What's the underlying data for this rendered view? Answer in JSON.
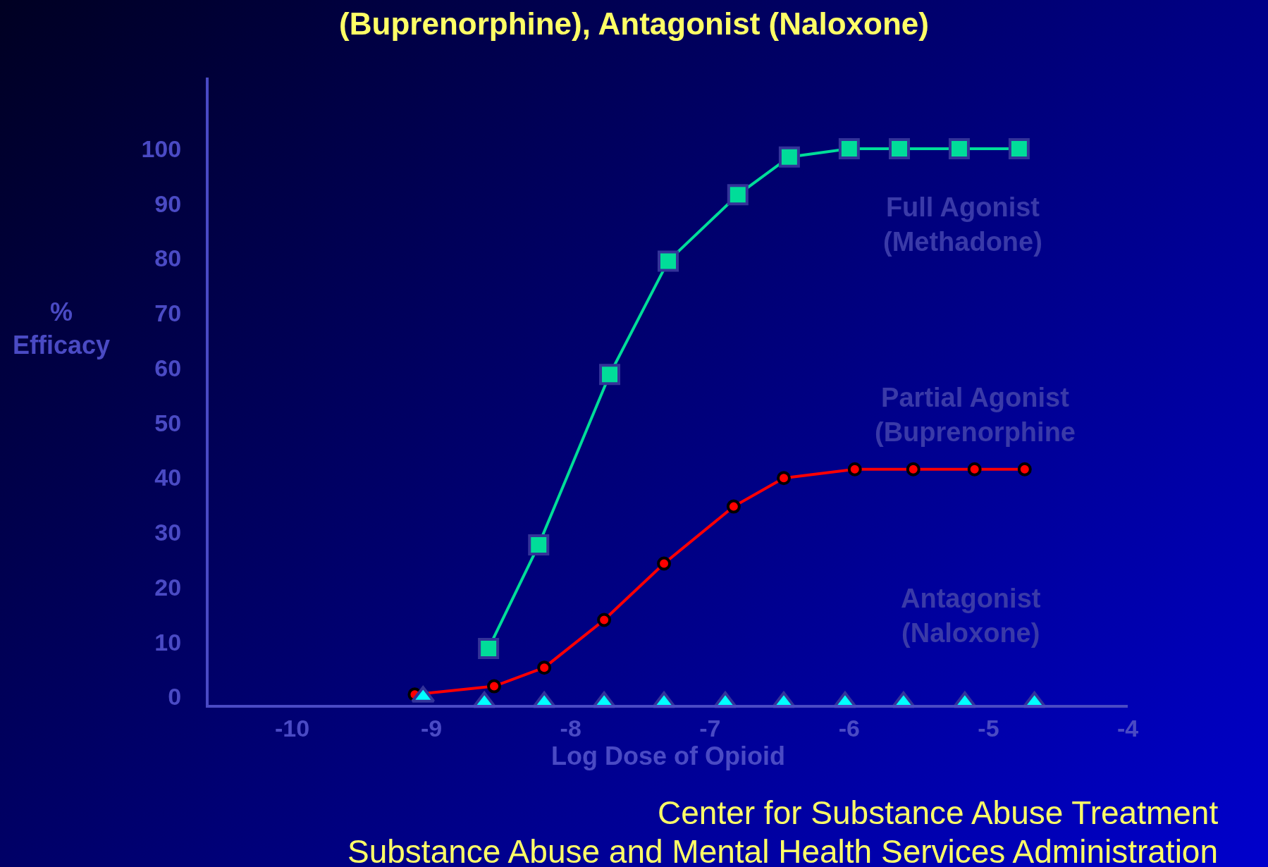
{
  "chart_data": {
    "type": "line",
    "title": "(Buprenorphine), Antagonist (Naloxone)",
    "xlabel": "Log Dose of Opioid",
    "ylabel": "%\nEfficacy",
    "xlim": [
      -10.6,
      -4
    ],
    "xticks": [
      -10,
      -9,
      -8,
      -7,
      -6,
      -5,
      -4
    ],
    "ylim": [
      -1.5,
      113
    ],
    "yticks": [
      0,
      10,
      20,
      30,
      40,
      50,
      60,
      70,
      80,
      90,
      100
    ],
    "grid": false,
    "legend": false,
    "series": [
      {
        "name": "Full Agonist\n(Methadone)",
        "marker": "square",
        "color": "#00dd99",
        "x": [
          -8.59,
          -8.23,
          -7.72,
          -7.3,
          -6.8,
          -6.43,
          -6.0,
          -5.64,
          -5.21,
          -4.78
        ],
        "values": [
          8.8,
          27.7,
          58.8,
          79.5,
          91.6,
          98.5,
          100,
          100,
          100,
          100
        ]
      },
      {
        "name": "Partial Agonist\n(Buprenorphine",
        "marker": "circle",
        "color": "#ff0000",
        "x": [
          -9.12,
          -8.55,
          -8.19,
          -7.76,
          -7.33,
          -6.83,
          -6.47,
          -5.96,
          -5.54,
          -5.1,
          -4.74
        ],
        "values": [
          0.4,
          1.9,
          5.3,
          14,
          24.3,
          34.7,
          39.9,
          41.5,
          41.5,
          41.5,
          41.5
        ]
      },
      {
        "name": "Antagonist\n(Naloxone)",
        "type": "scatter",
        "marker": "triangle",
        "color": "#00ffff",
        "x": [
          -9.06,
          -8.62,
          -8.19,
          -7.76,
          -7.33,
          -6.89,
          -6.47,
          -6.03,
          -5.61,
          -5.17,
          -4.67
        ],
        "values": [
          0,
          -1,
          -1,
          -1,
          -1,
          -1,
          -1,
          -1,
          -1,
          -1,
          -1
        ]
      }
    ],
    "annotations": [
      "Center for Substance Abuse Treatment",
      "Substance Abuse and Mental Health Services Administration"
    ]
  }
}
